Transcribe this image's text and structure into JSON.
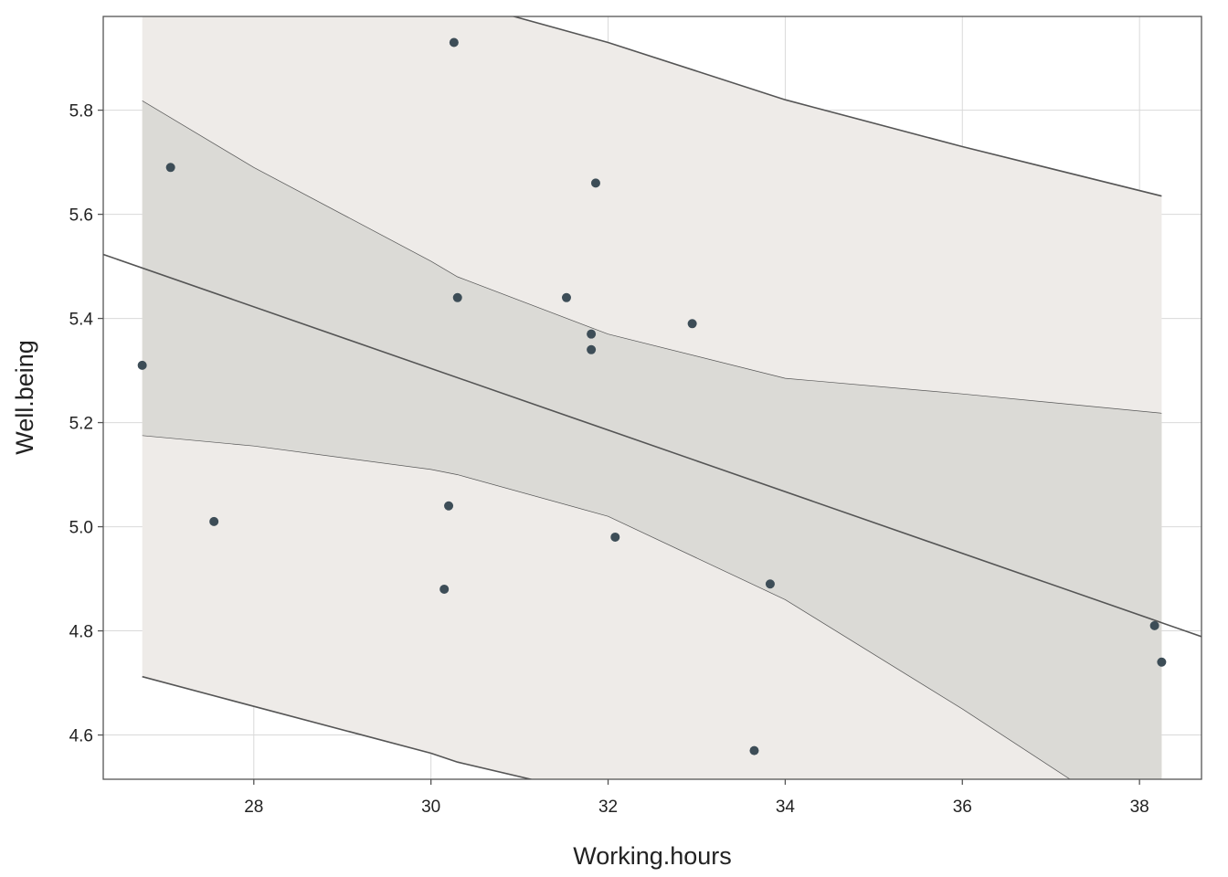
{
  "chart_data": {
    "type": "scatter",
    "title": "",
    "xlabel": "Working.hours",
    "ylabel": "Well.being",
    "xlim": [
      26.3,
      38.7
    ],
    "ylim": [
      4.515,
      5.98
    ],
    "x_ticks": [
      28,
      30,
      32,
      34,
      36,
      38
    ],
    "y_ticks": [
      4.6,
      4.8,
      5.0,
      5.2,
      5.4,
      5.6,
      5.8
    ],
    "x_tick_labels": [
      "28",
      "30",
      "32",
      "34",
      "36",
      "38"
    ],
    "y_tick_labels": [
      "4.6",
      "4.8",
      "5.0",
      "5.2",
      "5.4",
      "5.6",
      "5.8"
    ],
    "grid": true,
    "legend": "none",
    "colors": {
      "points": "#3d4d57",
      "fit_line": "#555555",
      "prediction_band": "#eeebe8",
      "confidence_band": "#dbdad6",
      "band_edge": "#555555",
      "grid": "#d9d9d9",
      "frame": "#555555"
    },
    "points": [
      {
        "x": 26.74,
        "y": 5.31
      },
      {
        "x": 27.06,
        "y": 5.69
      },
      {
        "x": 27.55,
        "y": 5.01
      },
      {
        "x": 30.15,
        "y": 4.88
      },
      {
        "x": 30.2,
        "y": 5.04
      },
      {
        "x": 30.26,
        "y": 5.93
      },
      {
        "x": 30.3,
        "y": 5.44
      },
      {
        "x": 31.53,
        "y": 5.44
      },
      {
        "x": 31.81,
        "y": 5.37
      },
      {
        "x": 31.81,
        "y": 5.34
      },
      {
        "x": 31.86,
        "y": 5.66
      },
      {
        "x": 32.08,
        "y": 4.98
      },
      {
        "x": 32.95,
        "y": 5.39
      },
      {
        "x": 33.65,
        "y": 4.57
      },
      {
        "x": 33.83,
        "y": 4.89
      },
      {
        "x": 38.17,
        "y": 4.81
      },
      {
        "x": 38.25,
        "y": 4.74
      }
    ],
    "fit_line": [
      {
        "x": 26.3,
        "y": 5.523
      },
      {
        "x": 38.7,
        "y": 4.789
      }
    ],
    "band_x": [
      26.74,
      28,
      30,
      30.3,
      32,
      34,
      36,
      38.25
    ],
    "confidence_upper": [
      5.818,
      5.69,
      5.51,
      5.48,
      5.37,
      5.285,
      5.255,
      5.218
    ],
    "confidence_lower": [
      5.175,
      5.155,
      5.11,
      5.1,
      5.02,
      4.86,
      4.65,
      4.4
    ],
    "prediction_upper": [
      6.1,
      6.08,
      6.03,
      6.01,
      5.93,
      5.82,
      5.73,
      5.635
    ],
    "prediction_lower": [
      4.712,
      4.655,
      4.565,
      4.548,
      4.48,
      4.39,
      4.32,
      4.26
    ]
  }
}
